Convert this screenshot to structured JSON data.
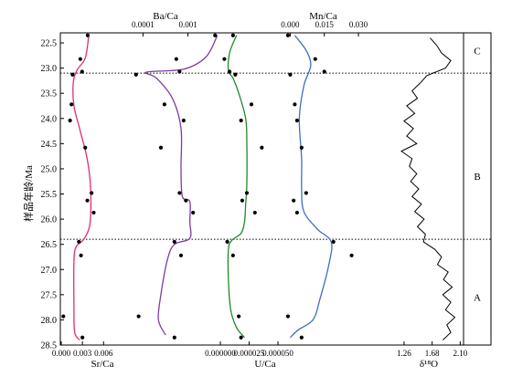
{
  "chart_data": {
    "type": "line",
    "y_axis": {
      "label": "样品年龄/Ma",
      "range": [
        22.3,
        28.5
      ],
      "ticks": [
        "22.5",
        "23.0",
        "23.5",
        "24.0",
        "24.5",
        "25.0",
        "25.5",
        "26.0",
        "26.5",
        "27.0",
        "27.5",
        "28.0",
        "28.5"
      ],
      "inverted": true
    },
    "panels": [
      {
        "name": "Sr/Ca",
        "axis_position": "bottom",
        "label": "Sr/Ca",
        "scale": "linear",
        "range": [
          0.0,
          0.007
        ],
        "ticks": [
          {
            "v": 0.0,
            "t": "0.000"
          },
          {
            "v": 0.003,
            "t": "0.003"
          },
          {
            "v": 0.006,
            "t": "0.006"
          }
        ],
        "color": "#e5297c",
        "points": [
          [
            0.00375,
            22.35
          ],
          [
            0.0027,
            22.82
          ],
          [
            0.00295,
            23.07
          ],
          [
            0.0016,
            23.13
          ],
          [
            0.00145,
            23.72
          ],
          [
            0.00125,
            24.04
          ],
          [
            0.0034,
            24.58
          ],
          [
            0.0037,
            25.63
          ],
          [
            0.0043,
            25.48
          ],
          [
            0.0046,
            25.87
          ],
          [
            0.0025,
            26.45
          ],
          [
            0.0028,
            26.72
          ],
          [
            0.0003,
            27.93
          ],
          [
            0.003,
            28.35
          ]
        ],
        "curve": [
          [
            0.0039,
            22.35
          ],
          [
            0.0034,
            22.8
          ],
          [
            0.0022,
            23.05
          ],
          [
            0.0017,
            23.3
          ],
          [
            0.0018,
            23.75
          ],
          [
            0.0026,
            24.2
          ],
          [
            0.0036,
            24.75
          ],
          [
            0.0041,
            25.25
          ],
          [
            0.0042,
            25.75
          ],
          [
            0.004,
            26.15
          ],
          [
            0.0032,
            26.4
          ],
          [
            0.0021,
            26.55
          ],
          [
            0.0018,
            26.85
          ],
          [
            0.0018,
            27.8
          ],
          [
            0.0019,
            28.25
          ],
          [
            0.0026,
            28.4
          ]
        ]
      },
      {
        "name": "Ba/Ca",
        "axis_position": "top",
        "label": "Ba/Ca",
        "scale": "log",
        "range": [
          2e-05,
          0.005
        ],
        "ticks": [
          {
            "v": 0.0001,
            "t": "0.0001"
          },
          {
            "v": 0.001,
            "t": "0.001"
          }
        ],
        "color": "#7d3ca0",
        "points": [
          [
            0.004,
            22.35
          ],
          [
            0.00055,
            22.82
          ],
          [
            0.00065,
            23.07
          ],
          [
            7e-05,
            23.13
          ],
          [
            0.0003,
            23.72
          ],
          [
            0.0008,
            24.04
          ],
          [
            0.00025,
            24.58
          ],
          [
            0.00065,
            25.48
          ],
          [
            0.0009,
            25.63
          ],
          [
            0.0013,
            25.87
          ],
          [
            0.0005,
            26.45
          ],
          [
            0.0007,
            26.72
          ],
          [
            8e-05,
            27.93
          ],
          [
            0.0005,
            28.35
          ]
        ],
        "curve": [
          [
            0.0045,
            22.35
          ],
          [
            0.0025,
            22.78
          ],
          [
            0.0008,
            23.02
          ],
          [
            0.00012,
            23.08
          ],
          [
            0.0002,
            23.2
          ],
          [
            0.00045,
            23.6
          ],
          [
            0.0007,
            24.2
          ],
          [
            0.0007,
            25.0
          ],
          [
            0.00075,
            25.55
          ],
          [
            0.0011,
            25.65
          ],
          [
            0.0011,
            26.05
          ],
          [
            0.0011,
            26.38
          ],
          [
            0.0005,
            26.5
          ],
          [
            0.00035,
            26.8
          ],
          [
            0.00025,
            27.5
          ],
          [
            0.00022,
            28.0
          ],
          [
            0.00032,
            28.3
          ]
        ]
      },
      {
        "name": "U/Ca",
        "axis_position": "bottom",
        "label": "U/Ca",
        "scale": "linear",
        "range": [
          0.0,
          5e-05
        ],
        "ticks": [
          {
            "v": 0.0,
            "t": "0.000000"
          },
          {
            "v": 2.5e-05,
            "t": "0.000025"
          },
          {
            "v": 5e-05,
            "t": "0.000050"
          }
        ],
        "color": "#1f8a2a",
        "points": [
          [
            1.1e-05,
            22.35
          ],
          [
            3.5e-06,
            22.82
          ],
          [
            8e-06,
            23.07
          ],
          [
            1.3e-05,
            23.13
          ],
          [
            2.7e-05,
            23.72
          ],
          [
            1.8e-05,
            24.04
          ],
          [
            3.6e-05,
            24.58
          ],
          [
            2.3e-05,
            25.48
          ],
          [
            1.9e-05,
            25.63
          ],
          [
            3e-05,
            25.87
          ],
          [
            6e-06,
            26.45
          ],
          [
            1.1e-05,
            26.72
          ],
          [
            1.6e-05,
            27.93
          ],
          [
            1.8e-05,
            28.35
          ]
        ],
        "curve": [
          [
            1.4e-05,
            22.35
          ],
          [
            8e-06,
            22.7
          ],
          [
            7e-06,
            23.05
          ],
          [
            1.1e-05,
            23.2
          ],
          [
            1.6e-05,
            23.5
          ],
          [
            2.2e-05,
            24.0
          ],
          [
            2.3e-05,
            24.5
          ],
          [
            2.3e-05,
            25.3
          ],
          [
            2.2e-05,
            25.7
          ],
          [
            2.1e-05,
            26.05
          ],
          [
            1.8e-05,
            26.28
          ],
          [
            1e-05,
            26.42
          ],
          [
            7e-06,
            26.6
          ],
          [
            7e-06,
            27.2
          ],
          [
            9e-06,
            27.8
          ],
          [
            1.4e-05,
            28.15
          ],
          [
            2.1e-05,
            28.35
          ]
        ]
      },
      {
        "name": "Mn/Ca",
        "axis_position": "top",
        "label": "Mn/Ca",
        "scale": "linear",
        "range": [
          -0.005,
          0.034
        ],
        "ticks": [
          {
            "v": 0.0,
            "t": "0.000"
          },
          {
            "v": 0.015,
            "t": "0.015"
          },
          {
            "v": 0.03,
            "t": "0.030"
          }
        ],
        "color": "#3c6fc0",
        "points": [
          [
            -0.001,
            22.35
          ],
          [
            0.011,
            22.82
          ],
          [
            0.015,
            23.07
          ],
          [
            0.0,
            23.13
          ],
          [
            0.002,
            23.72
          ],
          [
            0.003,
            24.04
          ],
          [
            0.005,
            24.58
          ],
          [
            0.0015,
            25.63
          ],
          [
            0.007,
            25.48
          ],
          [
            0.003,
            25.87
          ],
          [
            0.019,
            26.45
          ],
          [
            0.027,
            26.72
          ],
          [
            -0.001,
            27.93
          ],
          [
            0.005,
            28.35
          ]
        ],
        "curve": [
          [
            0.002,
            22.35
          ],
          [
            0.007,
            22.65
          ],
          [
            0.009,
            22.95
          ],
          [
            0.006,
            23.35
          ],
          [
            0.004,
            24.0
          ],
          [
            0.005,
            24.8
          ],
          [
            0.005,
            25.4
          ],
          [
            0.006,
            25.85
          ],
          [
            0.012,
            26.2
          ],
          [
            0.018,
            26.45
          ],
          [
            0.017,
            26.9
          ],
          [
            0.013,
            27.6
          ],
          [
            0.01,
            28.0
          ],
          [
            0.0035,
            28.2
          ],
          [
            0.0,
            28.35
          ]
        ]
      },
      {
        "name": "δ18O",
        "axis_position": "bottom",
        "label": "δ¹⁸O",
        "scale": "linear",
        "range": [
          0.96,
          2.15
        ],
        "ticks": [
          {
            "v": 1.26,
            "t": "1.26"
          },
          {
            "v": 1.68,
            "t": "1.68"
          },
          {
            "v": 2.1,
            "t": "2.10"
          }
        ],
        "color": "#000000",
        "curve": [
          [
            1.65,
            22.4
          ],
          [
            1.75,
            22.55
          ],
          [
            1.82,
            22.7
          ],
          [
            1.96,
            22.85
          ],
          [
            1.88,
            23.0
          ],
          [
            1.6,
            23.15
          ],
          [
            1.5,
            23.3
          ],
          [
            1.38,
            23.45
          ],
          [
            1.46,
            23.6
          ],
          [
            1.3,
            23.75
          ],
          [
            1.42,
            23.9
          ],
          [
            1.26,
            24.05
          ],
          [
            1.4,
            24.2
          ],
          [
            1.3,
            24.35
          ],
          [
            1.45,
            24.5
          ],
          [
            1.22,
            24.65
          ],
          [
            1.38,
            24.8
          ],
          [
            1.34,
            24.95
          ],
          [
            1.45,
            25.1
          ],
          [
            1.36,
            25.25
          ],
          [
            1.48,
            25.4
          ],
          [
            1.38,
            25.55
          ],
          [
            1.52,
            25.7
          ],
          [
            1.42,
            25.85
          ],
          [
            1.56,
            26.0
          ],
          [
            1.46,
            26.15
          ],
          [
            1.58,
            26.3
          ],
          [
            1.55,
            26.45
          ],
          [
            1.72,
            26.6
          ],
          [
            1.82,
            26.75
          ],
          [
            1.76,
            26.9
          ],
          [
            1.92,
            27.05
          ],
          [
            1.85,
            27.2
          ],
          [
            1.98,
            27.35
          ],
          [
            1.84,
            27.5
          ],
          [
            1.96,
            27.65
          ],
          [
            1.88,
            27.8
          ],
          [
            2.02,
            27.95
          ],
          [
            1.9,
            28.1
          ],
          [
            1.96,
            28.25
          ],
          [
            1.84,
            28.4
          ]
        ]
      }
    ],
    "reference_lines": [
      23.1,
      26.4
    ],
    "zones": [
      {
        "label": "C",
        "y": 22.65
      },
      {
        "label": "B",
        "y": 25.15
      },
      {
        "label": "A",
        "y": 27.55
      }
    ],
    "grid": false
  }
}
